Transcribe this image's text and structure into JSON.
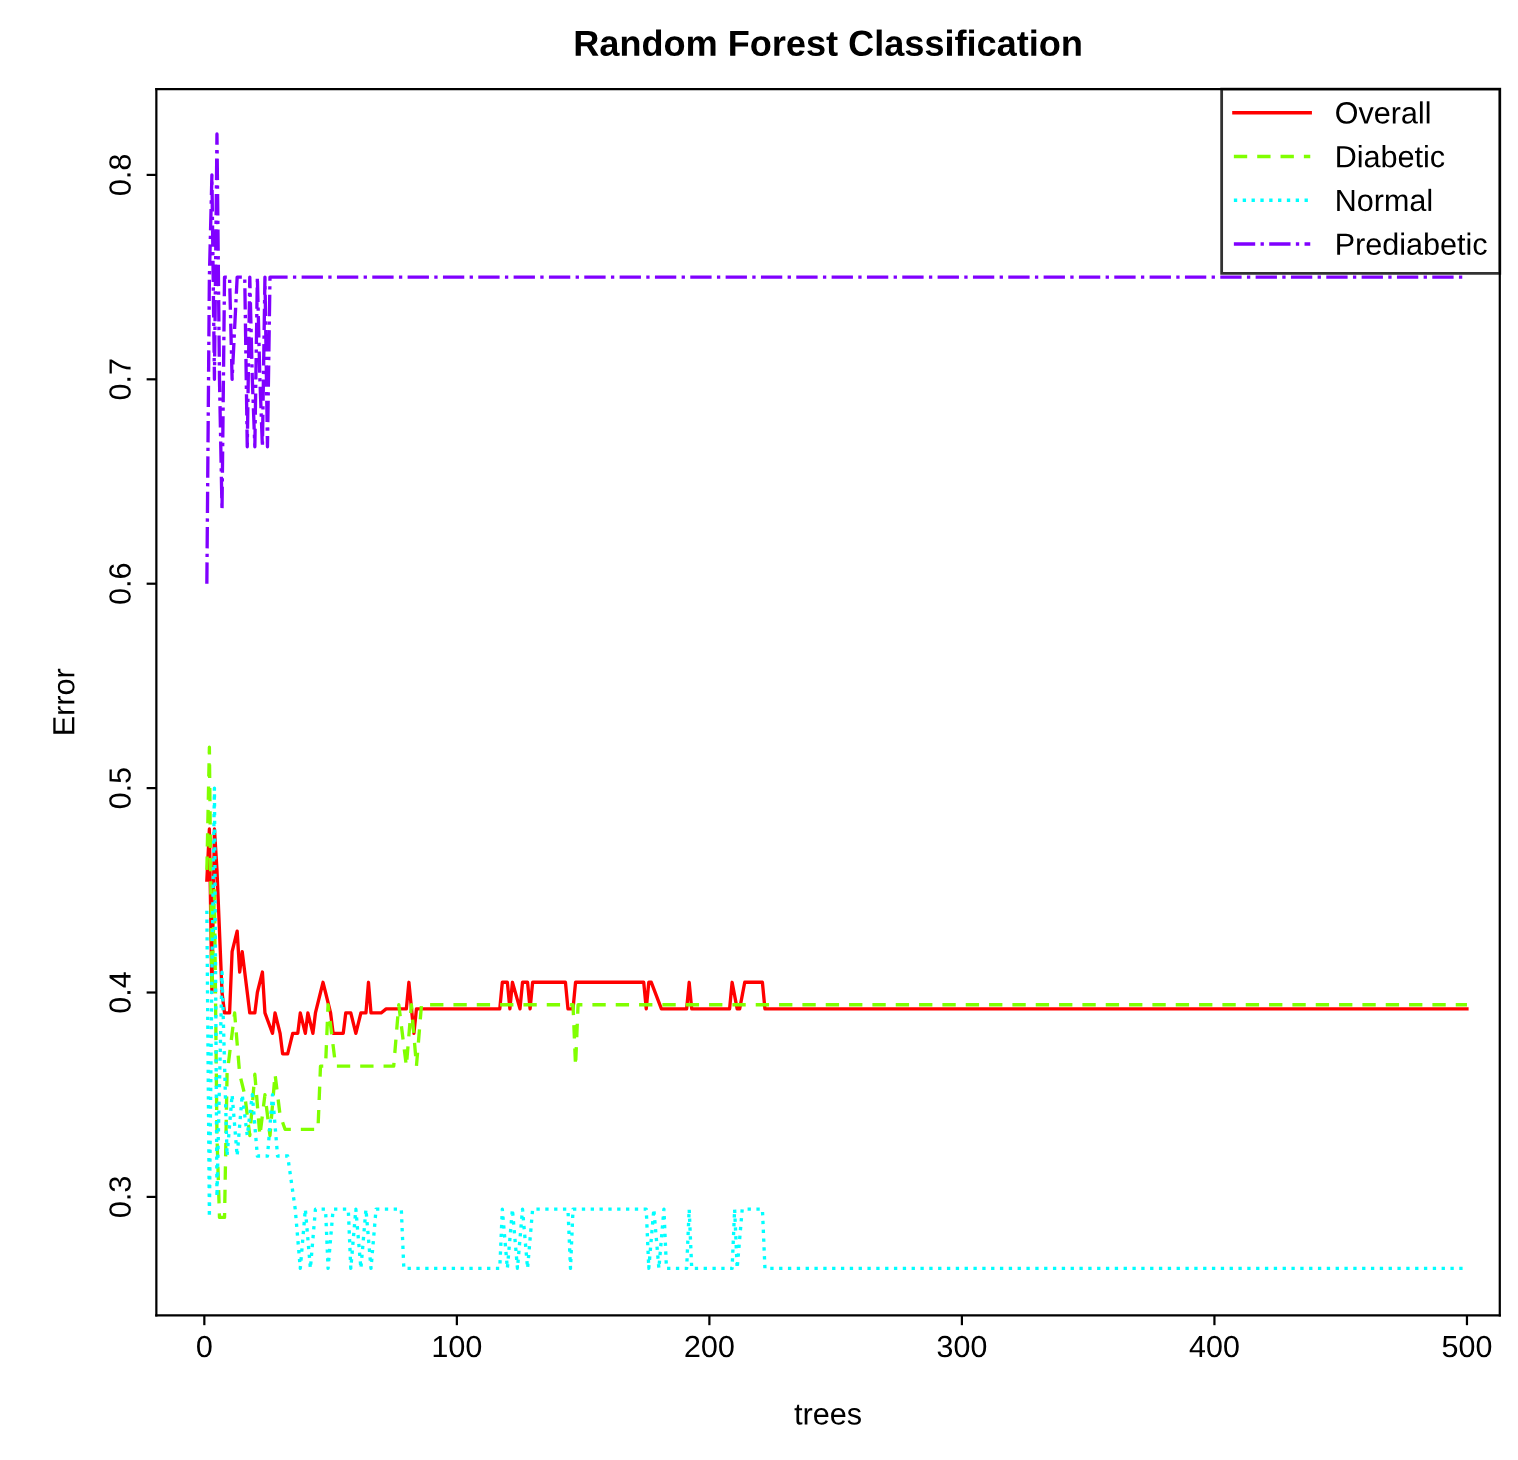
{
  "chart_data": {
    "type": "line",
    "title": "Random Forest Classification",
    "xlabel": "trees",
    "ylabel": "Error",
    "xlim": [
      -19,
      513
    ],
    "ylim": [
      0.242,
      0.842
    ],
    "xticks": [
      0,
      100,
      200,
      300,
      400,
      500
    ],
    "yticks": [
      0.3,
      0.4,
      0.5,
      0.6,
      0.7,
      0.8
    ],
    "grid": false,
    "legend": "top right",
    "marker": "none",
    "series": [
      {
        "name": "Overall",
        "color": "#ff0000",
        "line_style": "solid",
        "x": [
          1,
          2,
          3,
          4,
          5,
          7,
          8,
          10,
          11,
          13,
          14,
          15,
          17,
          18,
          20,
          21,
          23,
          24,
          27,
          28,
          30,
          31,
          33,
          35,
          37,
          38,
          40,
          41,
          43,
          44,
          46,
          47,
          48,
          50,
          51,
          55,
          56,
          58,
          60,
          62,
          64,
          65,
          66,
          70,
          72,
          80,
          81,
          83,
          84,
          86,
          117,
          118,
          120,
          121,
          122,
          125,
          126,
          128,
          129,
          130,
          143,
          144,
          146,
          147,
          174,
          175,
          176,
          177,
          181,
          182,
          191,
          192,
          193,
          208,
          209,
          211,
          212,
          214,
          215,
          221,
          222,
          500
        ],
        "values": [
          0.455,
          0.48,
          0.4,
          0.48,
          0.46,
          0.4,
          0.39,
          0.39,
          0.42,
          0.43,
          0.41,
          0.42,
          0.4,
          0.39,
          0.39,
          0.4,
          0.41,
          0.39,
          0.38,
          0.39,
          0.38,
          0.37,
          0.37,
          0.38,
          0.38,
          0.39,
          0.38,
          0.39,
          0.38,
          0.39,
          0.4,
          0.405,
          0.4,
          0.39,
          0.38,
          0.38,
          0.39,
          0.39,
          0.38,
          0.39,
          0.39,
          0.405,
          0.39,
          0.39,
          0.392,
          0.392,
          0.405,
          0.38,
          0.392,
          0.392,
          0.392,
          0.405,
          0.405,
          0.392,
          0.405,
          0.392,
          0.405,
          0.405,
          0.392,
          0.405,
          0.405,
          0.392,
          0.392,
          0.405,
          0.405,
          0.392,
          0.405,
          0.405,
          0.392,
          0.392,
          0.392,
          0.405,
          0.392,
          0.392,
          0.405,
          0.392,
          0.392,
          0.405,
          0.405,
          0.405,
          0.392,
          0.392
        ]
      },
      {
        "name": "Diabetic",
        "color": "#80ff00",
        "line_style": "dashed",
        "x": [
          1,
          2,
          3,
          4,
          5,
          6,
          8,
          9,
          12,
          14,
          16,
          18,
          20,
          22,
          24,
          26,
          28,
          30,
          32,
          45,
          46,
          48,
          49,
          52,
          75,
          77,
          80,
          82,
          84,
          86,
          146,
          147,
          148,
          500
        ],
        "values": [
          0.46,
          0.52,
          0.4,
          0.45,
          0.33,
          0.29,
          0.29,
          0.36,
          0.39,
          0.36,
          0.35,
          0.33,
          0.36,
          0.33,
          0.35,
          0.33,
          0.36,
          0.34,
          0.333,
          0.333,
          0.364,
          0.364,
          0.394,
          0.364,
          0.364,
          0.394,
          0.364,
          0.394,
          0.364,
          0.394,
          0.394,
          0.364,
          0.394,
          0.394
        ]
      },
      {
        "name": "Normal",
        "color": "#00ffff",
        "line_style": "dotted",
        "x": [
          1,
          2,
          3,
          4,
          5,
          7,
          9,
          11,
          13,
          15,
          17,
          19,
          21,
          25,
          27,
          29,
          33,
          36,
          38,
          40,
          42,
          44,
          48,
          49,
          51,
          57,
          58,
          60,
          62,
          64,
          66,
          68,
          78,
          79,
          117,
          118,
          120,
          122,
          124,
          126,
          128,
          130,
          144,
          145,
          146,
          175,
          176,
          178,
          180,
          182,
          183,
          191,
          192,
          193,
          209,
          210,
          211,
          213,
          221,
          222,
          500
        ],
        "values": [
          0.44,
          0.29,
          0.41,
          0.5,
          0.3,
          0.41,
          0.32,
          0.35,
          0.32,
          0.35,
          0.33,
          0.35,
          0.32,
          0.32,
          0.35,
          0.32,
          0.32,
          0.294,
          0.265,
          0.294,
          0.265,
          0.294,
          0.294,
          0.265,
          0.294,
          0.294,
          0.265,
          0.294,
          0.265,
          0.294,
          0.265,
          0.294,
          0.294,
          0.265,
          0.265,
          0.294,
          0.265,
          0.294,
          0.265,
          0.294,
          0.265,
          0.294,
          0.294,
          0.265,
          0.294,
          0.294,
          0.265,
          0.294,
          0.265,
          0.294,
          0.265,
          0.265,
          0.294,
          0.265,
          0.265,
          0.294,
          0.265,
          0.294,
          0.294,
          0.265,
          0.265
        ]
      },
      {
        "name": "Prediabetic",
        "color": "#8000ff",
        "line_style": "dashdot",
        "x": [
          1,
          2,
          3,
          4,
          5,
          6,
          7,
          8,
          10,
          11,
          13,
          16,
          17,
          18,
          19,
          20,
          21,
          22,
          23,
          24,
          25,
          26,
          500
        ],
        "values": [
          0.6,
          0.75,
          0.8,
          0.7,
          0.82,
          0.7,
          0.636,
          0.75,
          0.75,
          0.7,
          0.75,
          0.75,
          0.667,
          0.75,
          0.7,
          0.667,
          0.75,
          0.7,
          0.667,
          0.75,
          0.667,
          0.75,
          0.75
        ]
      }
    ]
  }
}
